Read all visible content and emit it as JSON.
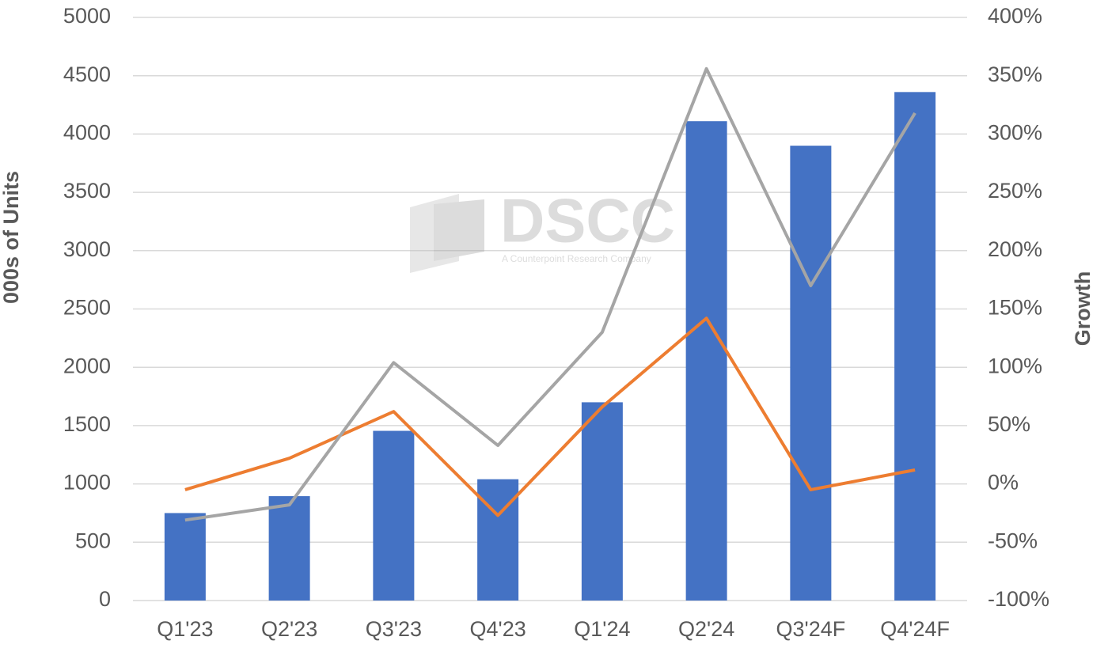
{
  "chart_data": {
    "type": "bar",
    "y_label": "000s of Units",
    "y2_label": "Growth",
    "watermark": {
      "text": "DSCC",
      "subtitle": "A Counterpoint Research Company"
    },
    "categories": [
      "Q1'23",
      "Q2'23",
      "Q3'23",
      "Q4'23",
      "Q1'24",
      "Q2'24",
      "Q3'24F",
      "Q4'24F"
    ],
    "series": [
      {
        "type": "bar",
        "color": "#4472c4",
        "values": [
          750,
          895,
          1455,
          1040,
          1700,
          4110,
          3900,
          4360
        ]
      },
      {
        "type": "line",
        "axis": "y2",
        "color": "#ed7d31",
        "values": [
          -5,
          22,
          62,
          -27,
          66,
          142,
          -5,
          12
        ]
      },
      {
        "type": "line",
        "axis": "y2",
        "color": "#a5a5a5",
        "values": [
          -31,
          -18,
          104,
          33,
          130,
          356,
          170,
          318
        ]
      }
    ],
    "ylim": [
      0,
      5000
    ],
    "yticks": [
      0,
      500,
      1000,
      1500,
      2000,
      2500,
      3000,
      3500,
      4000,
      4500,
      5000
    ],
    "y2lim": [
      -100,
      400
    ],
    "y2ticks": [
      {
        "value": -100,
        "label": "-100%"
      },
      {
        "value": -50,
        "label": "-50%"
      },
      {
        "value": 0,
        "label": "0%"
      },
      {
        "value": 50,
        "label": "50%"
      },
      {
        "value": 100,
        "label": "100%"
      },
      {
        "value": 150,
        "label": "150%"
      },
      {
        "value": 200,
        "label": "200%"
      },
      {
        "value": 250,
        "label": "250%"
      },
      {
        "value": 300,
        "label": "300%"
      },
      {
        "value": 350,
        "label": "350%"
      },
      {
        "value": 400,
        "label": "400%"
      }
    ],
    "grid": true
  }
}
